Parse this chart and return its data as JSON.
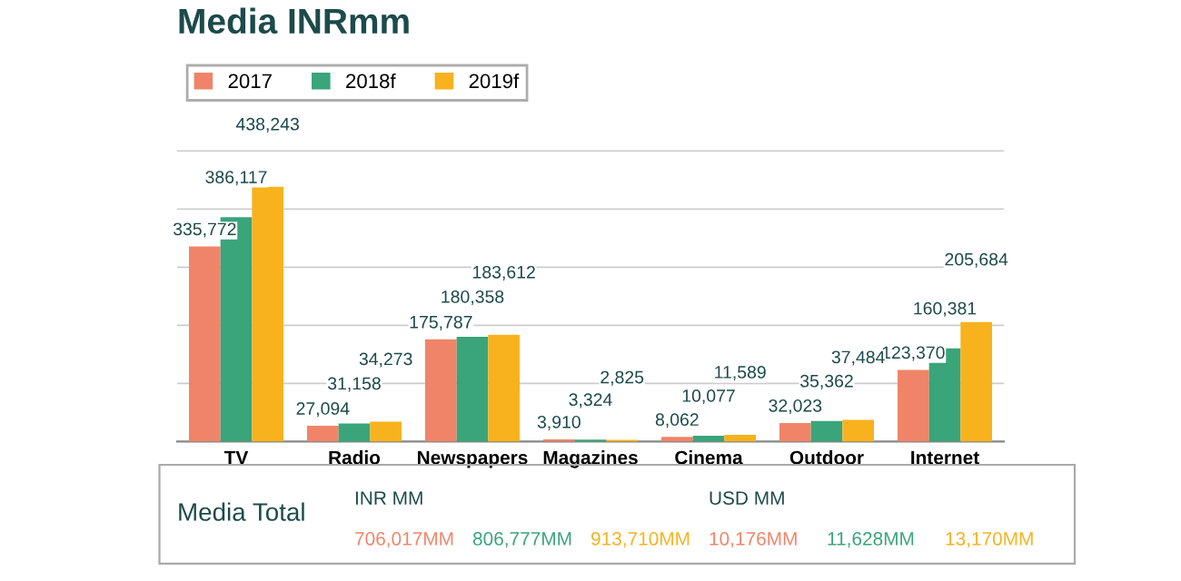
{
  "chart_data": {
    "type": "bar",
    "title": "Media INRmm",
    "categories": [
      "TV",
      "Radio",
      "Newspapers",
      "Magazines",
      "Cinema",
      "Outdoor",
      "Internet"
    ],
    "series": [
      {
        "name": "2017",
        "color": "#f08468",
        "values": [
          335772,
          27094,
          175787,
          3910,
          8062,
          32023,
          123370
        ],
        "value_labels": [
          "335,772",
          "27,094",
          "175,787",
          "3,910",
          "8,062",
          "32,023",
          "123,370"
        ]
      },
      {
        "name": "2018f",
        "color": "#3aa47a",
        "values": [
          386117,
          31158,
          180358,
          3324,
          10077,
          35362,
          160381
        ],
        "value_labels": [
          "386,117",
          "31,158",
          "180,358",
          "3,324",
          "10,077",
          "35,362",
          "160,381"
        ]
      },
      {
        "name": "2019f",
        "color": "#f7b21e",
        "values": [
          438243,
          34273,
          183612,
          2825,
          11589,
          37484,
          205684
        ],
        "value_labels": [
          "438,243",
          "34,273",
          "183,612",
          "2,825",
          "11,589",
          "37,484",
          "205,684"
        ]
      }
    ],
    "grid": "y",
    "legend": "top left",
    "tick_labels": "x",
    "annotations": [
      "Media Total",
      "INR MM",
      "706,017MM",
      "806,777MM",
      "913,710MM",
      "USD MM",
      "10,176MM",
      "11,628MM",
      "13,170MM"
    ]
  }
}
